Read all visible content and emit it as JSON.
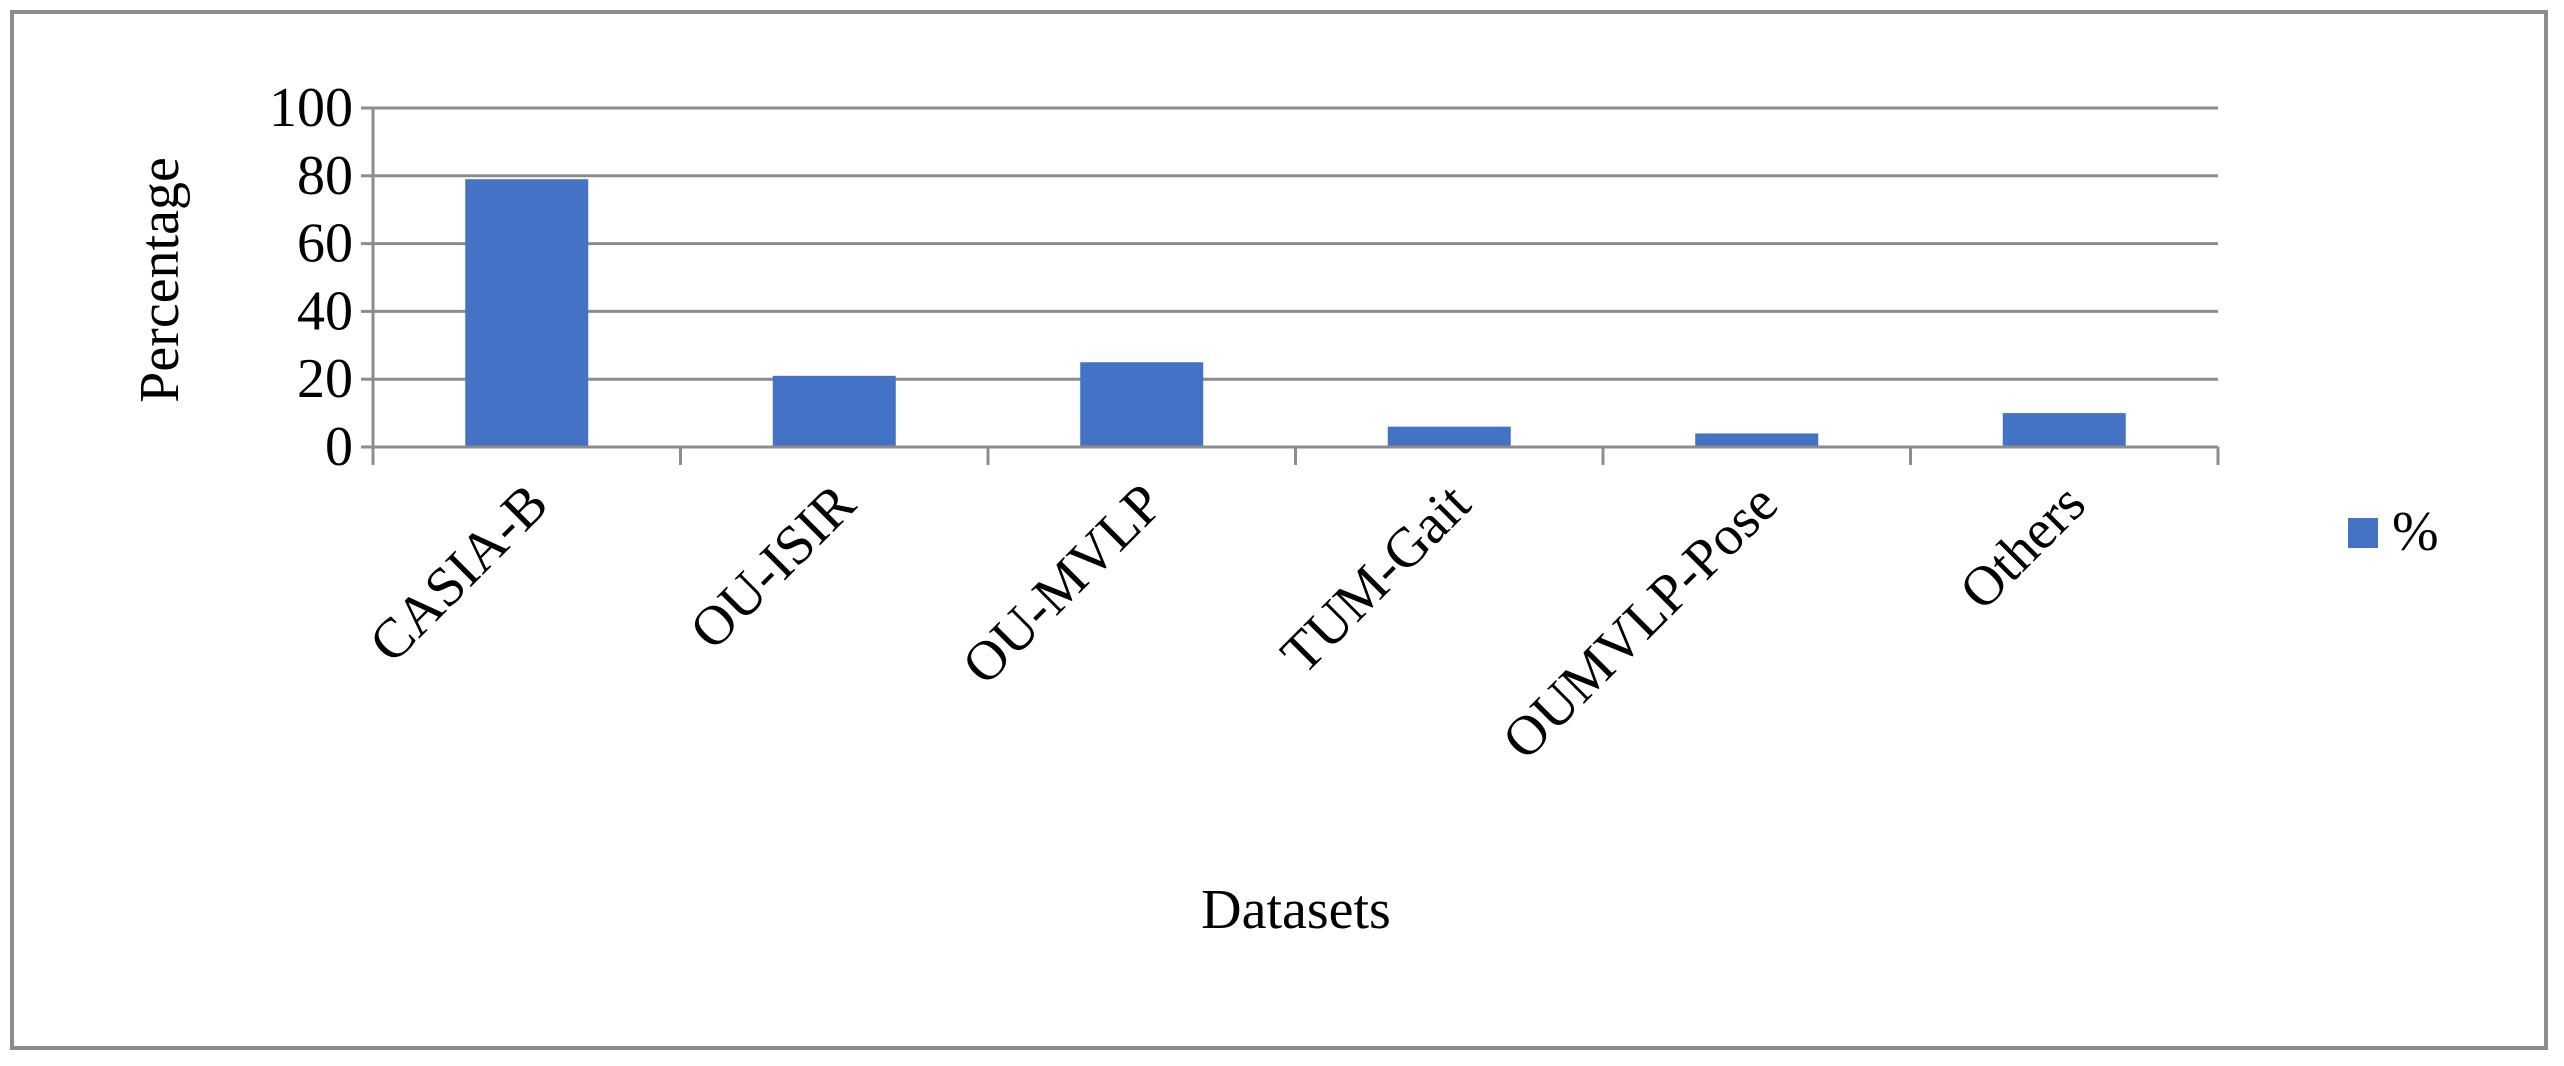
{
  "chart_data": {
    "type": "bar",
    "title": "",
    "xlabel": "Datasets",
    "ylabel": "Percentage",
    "categories": [
      "CASIA-B",
      "OU-ISIR",
      "OU-MVLP",
      "TUM-Gait",
      "OUMVLP-Pose",
      "Others"
    ],
    "series": [
      {
        "name": "%",
        "values": [
          79,
          21,
          25,
          6,
          4,
          10
        ]
      }
    ],
    "ylim": [
      0,
      100
    ],
    "yticks": [
      0,
      20,
      40,
      60,
      80,
      100
    ],
    "grid": true,
    "legend_position": "right",
    "colors": {
      "bar": "#4472C4",
      "grid": "#8c8c8c",
      "axis": "#8c8c8c",
      "text": "#000000",
      "frame": "#8c8c8c"
    }
  }
}
